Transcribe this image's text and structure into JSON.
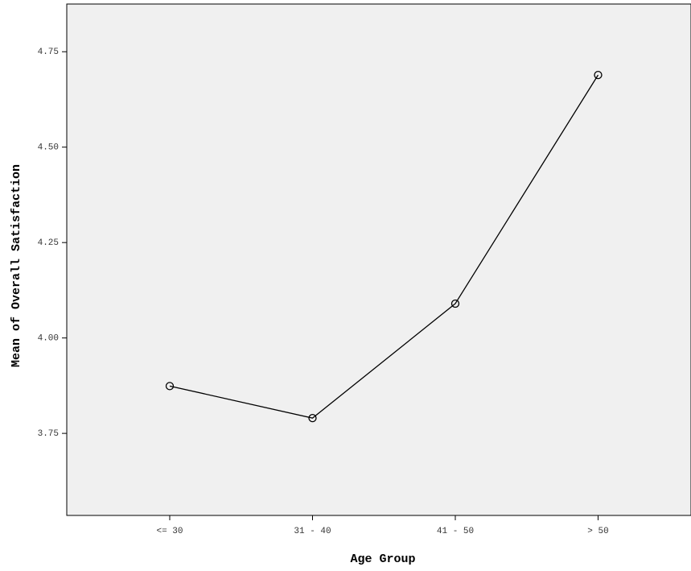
{
  "chart_data": {
    "type": "line",
    "x_label": "Age Group",
    "y_label": "Mean of Overall Satisfaction",
    "categories": [
      "<= 30",
      "31 - 40",
      "41 - 50",
      "> 50"
    ],
    "values": [
      3.874,
      3.79,
      4.09,
      4.689
    ],
    "color": "#000000",
    "ylim": [
      3.535,
      4.875
    ],
    "yticks": [
      3.75,
      {
        "value": 4,
        "label": "4.00"
      },
      4.25,
      {
        "value": 4.5,
        "label": "4.50"
      },
      4.75
    ],
    "grid": false
  }
}
